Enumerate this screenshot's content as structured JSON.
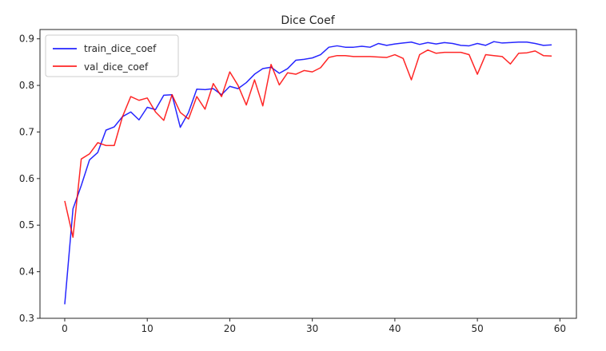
{
  "chart_data": {
    "type": "line",
    "title": "Dice Coef",
    "xlabel": "",
    "ylabel": "",
    "xlim": [
      -3,
      62
    ],
    "ylim": [
      0.3,
      0.92
    ],
    "xticks": [
      0,
      10,
      20,
      30,
      40,
      50,
      60
    ],
    "yticks": [
      0.3,
      0.4,
      0.5,
      0.6,
      0.7,
      0.8,
      0.9
    ],
    "xtick_labels": [
      "0",
      "10",
      "20",
      "30",
      "40",
      "50",
      "60"
    ],
    "ytick_labels": [
      "0.3",
      "0.4",
      "0.5",
      "0.6",
      "0.7",
      "0.8",
      "0.9"
    ],
    "grid": false,
    "legend_position": "upper-left",
    "x": [
      0,
      1,
      2,
      3,
      4,
      5,
      6,
      7,
      8,
      9,
      10,
      11,
      12,
      13,
      14,
      15,
      16,
      17,
      18,
      19,
      20,
      21,
      22,
      23,
      24,
      25,
      26,
      27,
      28,
      29,
      30,
      31,
      32,
      33,
      34,
      35,
      36,
      37,
      38,
      39,
      40,
      41,
      42,
      43,
      44,
      45,
      46,
      47,
      48,
      49,
      50,
      51,
      52,
      53,
      54,
      55,
      56,
      57,
      58,
      59
    ],
    "series": [
      {
        "name": "train_dice_coef",
        "color": "#0000ff",
        "values": [
          0.33,
          0.535,
          0.585,
          0.64,
          0.656,
          0.704,
          0.711,
          0.733,
          0.743,
          0.726,
          0.753,
          0.748,
          0.779,
          0.78,
          0.71,
          0.742,
          0.792,
          0.791,
          0.793,
          0.78,
          0.798,
          0.793,
          0.806,
          0.824,
          0.836,
          0.839,
          0.826,
          0.836,
          0.854,
          0.856,
          0.859,
          0.866,
          0.882,
          0.885,
          0.882,
          0.882,
          0.884,
          0.882,
          0.89,
          0.886,
          0.889,
          0.891,
          0.893,
          0.888,
          0.892,
          0.889,
          0.892,
          0.89,
          0.886,
          0.885,
          0.89,
          0.886,
          0.894,
          0.891,
          0.892,
          0.893,
          0.893,
          0.89,
          0.886,
          0.887
        ]
      },
      {
        "name": "val_dice_coef",
        "color": "#ff0000",
        "values": [
          0.552,
          0.474,
          0.642,
          0.653,
          0.677,
          0.671,
          0.671,
          0.733,
          0.776,
          0.768,
          0.773,
          0.743,
          0.725,
          0.78,
          0.742,
          0.728,
          0.776,
          0.749,
          0.804,
          0.776,
          0.829,
          0.8,
          0.758,
          0.812,
          0.756,
          0.845,
          0.801,
          0.827,
          0.824,
          0.832,
          0.829,
          0.838,
          0.86,
          0.864,
          0.864,
          0.862,
          0.862,
          0.862,
          0.861,
          0.86,
          0.866,
          0.858,
          0.812,
          0.866,
          0.876,
          0.869,
          0.871,
          0.871,
          0.871,
          0.866,
          0.824,
          0.866,
          0.864,
          0.862,
          0.846,
          0.869,
          0.87,
          0.874,
          0.864,
          0.863
        ]
      }
    ]
  }
}
